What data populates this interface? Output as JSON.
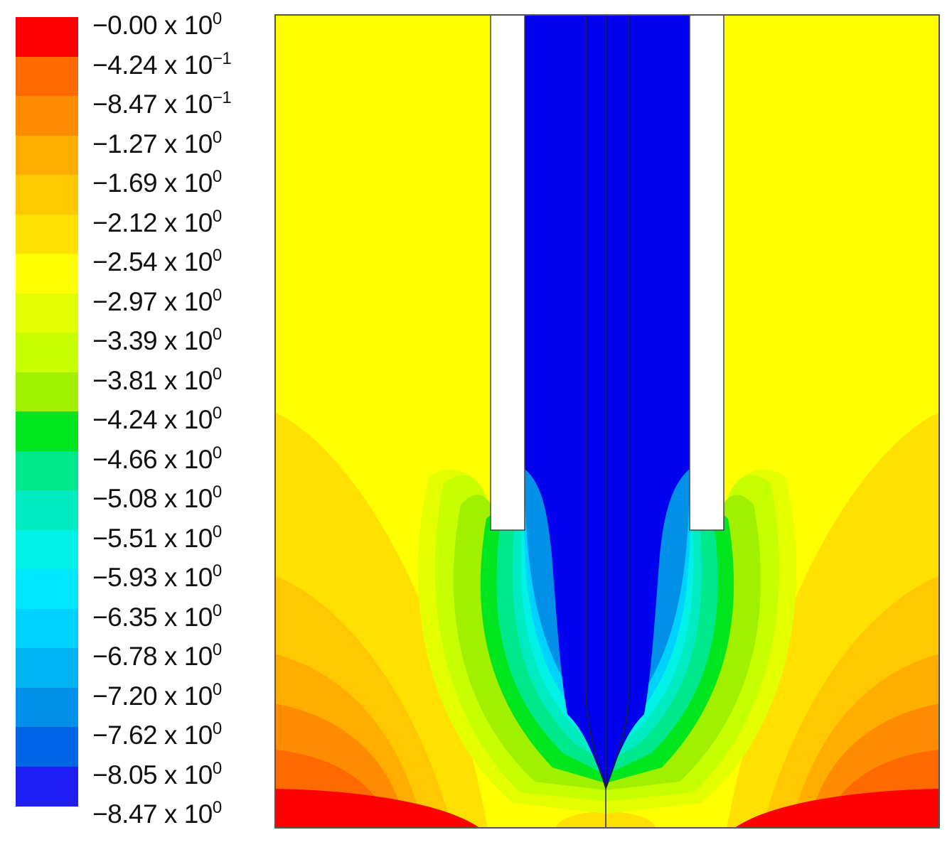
{
  "legend": {
    "colors": [
      "#ff0000",
      "#ff6a00",
      "#ff8c00",
      "#ffae00",
      "#ffc800",
      "#ffe000",
      "#ffff00",
      "#e4ff00",
      "#c6ff00",
      "#a0f000",
      "#00e61e",
      "#00e88c",
      "#00ecc0",
      "#00f2e6",
      "#00e8ff",
      "#00d2ff",
      "#00b4f2",
      "#0090e8",
      "#0064e6",
      "#1e1ef2"
    ],
    "labels": [
      {
        "mant": "−0.00",
        "times": "x",
        "base": "10",
        "exp": "0"
      },
      {
        "mant": "−4.24",
        "times": "x",
        "base": "10",
        "exp": "−1"
      },
      {
        "mant": "−8.47",
        "times": "x",
        "base": "10",
        "exp": "−1"
      },
      {
        "mant": "−1.27",
        "times": "x",
        "base": "10",
        "exp": "0"
      },
      {
        "mant": "−1.69",
        "times": "x",
        "base": "10",
        "exp": "0"
      },
      {
        "mant": "−2.12",
        "times": "x",
        "base": "10",
        "exp": "0"
      },
      {
        "mant": "−2.54",
        "times": "x",
        "base": "10",
        "exp": "0"
      },
      {
        "mant": "−2.97",
        "times": "x",
        "base": "10",
        "exp": "0"
      },
      {
        "mant": "−3.39",
        "times": "x",
        "base": "10",
        "exp": "0"
      },
      {
        "mant": "−3.81",
        "times": "x",
        "base": "10",
        "exp": "0"
      },
      {
        "mant": "−4.24",
        "times": "x",
        "base": "10",
        "exp": "0"
      },
      {
        "mant": "−4.66",
        "times": "x",
        "base": "10",
        "exp": "0"
      },
      {
        "mant": "−5.08",
        "times": "x",
        "base": "10",
        "exp": "0"
      },
      {
        "mant": "−5.51",
        "times": "x",
        "base": "10",
        "exp": "0"
      },
      {
        "mant": "−5.93",
        "times": "x",
        "base": "10",
        "exp": "0"
      },
      {
        "mant": "−6.35",
        "times": "x",
        "base": "10",
        "exp": "0"
      },
      {
        "mant": "−6.78",
        "times": "x",
        "base": "10",
        "exp": "0"
      },
      {
        "mant": "−7.20",
        "times": "x",
        "base": "10",
        "exp": "0"
      },
      {
        "mant": "−7.62",
        "times": "x",
        "base": "10",
        "exp": "0"
      },
      {
        "mant": "−8.05",
        "times": "x",
        "base": "10",
        "exp": "0"
      },
      {
        "mant": "−8.47",
        "times": "x",
        "base": "10",
        "exp": "0"
      }
    ]
  },
  "colors": {
    "background_field": "#ffff00",
    "jet_core": "#0000ee",
    "bottom_hot": "#ff0000",
    "wall": "#ffffff",
    "outline": "#333333"
  }
}
